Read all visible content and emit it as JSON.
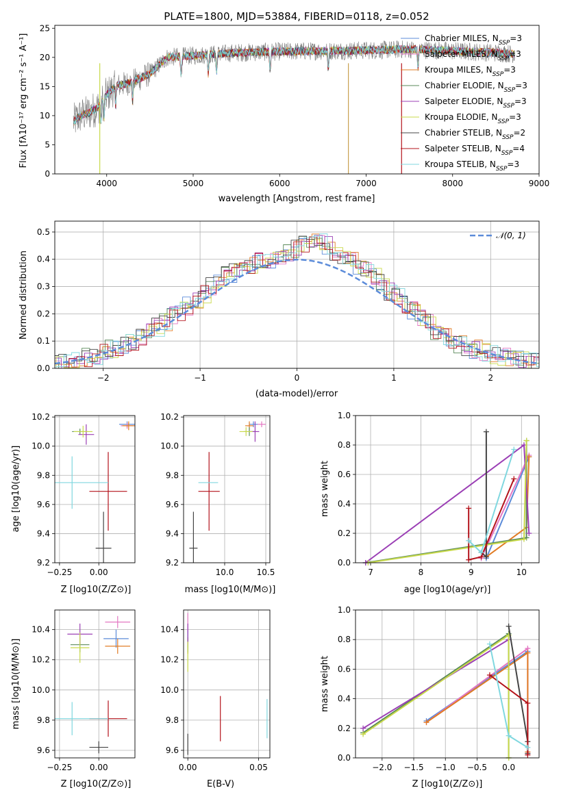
{
  "chart_data": [
    {
      "type": "line",
      "title": "PLATE=1800, MJD=53884, FIBERID=0118, z=0.052",
      "xlabel": "wavelength [Angstrom, rest frame]",
      "ylabel": "Flux [fλ10⁻¹⁷ erg cm⁻² s⁻¹ A⁻¹]",
      "xlim": [
        3400,
        9000
      ],
      "ylim": [
        0,
        25.5
      ],
      "xticks": [
        "4000",
        "5000",
        "6000",
        "7000",
        "8000",
        "9000"
      ],
      "yticks": [
        "0",
        "5",
        "10",
        "15",
        "20",
        "25"
      ],
      "grid": false,
      "legend": "upper right",
      "continuum": {
        "x": [
          3620,
          3700,
          3800,
          3900,
          4000,
          4100,
          4300,
          4500,
          4700,
          5000,
          5500,
          6000,
          6500,
          7000,
          7500,
          8000,
          8500,
          8700
        ],
        "y": [
          9.0,
          10.0,
          10.5,
          11.5,
          13.5,
          15.0,
          15.8,
          17.2,
          20.0,
          20.3,
          20.8,
          21.0,
          21.1,
          21.2,
          21.4,
          21.1,
          20.8,
          20.6
        ]
      },
      "series": [
        {
          "name": "Chabrier MILES, N_SSP=3",
          "color": "#5b8bd9"
        },
        {
          "name": "Salpeter MILES, N_SSP=3",
          "color": "#e377c2"
        },
        {
          "name": "Kroupa MILES, N_SSP=3",
          "color": "#e07b24"
        },
        {
          "name": "Chabrier ELODIE, N_SSP=3",
          "color": "#5a8a5a"
        },
        {
          "name": "Salpeter ELODIE, N_SSP=3",
          "color": "#9b3fb5"
        },
        {
          "name": "Kroupa ELODIE, N_SSP=3",
          "color": "#c8d94a"
        },
        {
          "name": "Chabrier STELIB, N_SSP=2",
          "color": "#444444"
        },
        {
          "name": "Salpeter STELIB, N_SSP=4",
          "color": "#b3121a"
        },
        {
          "name": "Kroupa STELIB, N_SSP=3",
          "color": "#7fd7df"
        }
      ],
      "legend_entries": [
        {
          "pre": "Chabrier MILES, N",
          "post": "=3"
        },
        {
          "pre": "Salpeter MILES, N",
          "post": "=3"
        },
        {
          "pre": "Kroupa MILES, N",
          "post": "=3"
        },
        {
          "pre": "Chabrier ELODIE, N",
          "post": "=3"
        },
        {
          "pre": "Salpeter ELODIE, N",
          "post": "=3"
        },
        {
          "pre": "Kroupa ELODIE, N",
          "post": "=3"
        },
        {
          "pre": "Chabrier STELIB, N",
          "post": "=2"
        },
        {
          "pre": "Salpeter STELIB, N",
          "post": "=4"
        },
        {
          "pre": "Kroupa STELIB, N",
          "post": "=3"
        }
      ],
      "legend_sub": "SSP"
    },
    {
      "type": "histogram",
      "xlabel": "(data-model)/error",
      "ylabel": "Normed distribution",
      "xlim": [
        -2.5,
        2.5
      ],
      "ylim": [
        0,
        0.54
      ],
      "xticks": [
        "−2",
        "−1",
        "0",
        "1",
        "2"
      ],
      "yticks": [
        "0.0",
        "0.1",
        "0.2",
        "0.3",
        "0.4",
        "0.5"
      ],
      "grid": true,
      "legend": "upper right",
      "reference_label": "𝒩(0, 1)",
      "reference": {
        "type": "normal",
        "mean": 0,
        "sigma": 1,
        "color": "#5b8bd9"
      },
      "bin_width": 0.1,
      "bins_start": -2.5,
      "base_values": [
        0.02,
        0.025,
        0.03,
        0.035,
        0.04,
        0.048,
        0.06,
        0.07,
        0.08,
        0.09,
        0.1,
        0.12,
        0.135,
        0.15,
        0.17,
        0.19,
        0.21,
        0.23,
        0.25,
        0.27,
        0.3,
        0.32,
        0.34,
        0.35,
        0.37,
        0.38,
        0.39,
        0.395,
        0.4,
        0.41,
        0.42,
        0.44,
        0.45,
        0.46,
        0.46,
        0.45,
        0.43,
        0.41,
        0.4,
        0.38,
        0.36,
        0.34,
        0.31,
        0.28,
        0.26,
        0.23,
        0.21,
        0.19,
        0.17,
        0.14,
        0.12,
        0.1,
        0.09,
        0.08,
        0.07,
        0.06,
        0.05,
        0.045,
        0.04,
        0.035,
        0.03,
        0.025,
        0.02
      ]
    },
    {
      "type": "errorbar",
      "xlabel": "Z [log10(Z/Z⊙)]",
      "ylabel": "age [log10(age/yr)]",
      "xlim": [
        -0.28,
        0.23
      ],
      "ylim": [
        9.2,
        10.21
      ],
      "xticks": [
        {
          "v": -0.25,
          "t": "−0.25"
        },
        {
          "v": 0.0,
          "t": "0.00"
        }
      ],
      "yticks": [
        "9.2",
        "9.4",
        "9.6",
        "9.8",
        "10.0",
        "10.2"
      ],
      "grid": true,
      "points": [
        {
          "x": 0.18,
          "y": 10.15,
          "xerr": 0.05,
          "yerr": 0.02,
          "color": "#5b8bd9"
        },
        {
          "x": 0.18,
          "y": 10.14,
          "xerr": 0.04,
          "yerr": 0.02,
          "color": "#e377c2"
        },
        {
          "x": 0.19,
          "y": 10.14,
          "xerr": 0.04,
          "yerr": 0.03,
          "color": "#e07b24"
        },
        {
          "x": -0.12,
          "y": 10.1,
          "xerr": 0.05,
          "yerr": 0.02,
          "color": "#5a8a5a"
        },
        {
          "x": -0.08,
          "y": 10.08,
          "xerr": 0.05,
          "yerr": 0.07,
          "color": "#9b3fb5"
        },
        {
          "x": -0.1,
          "y": 10.1,
          "xerr": 0.06,
          "yerr": 0.04,
          "color": "#c8d94a"
        },
        {
          "x": 0.03,
          "y": 9.3,
          "xerr": 0.05,
          "yerr": 0.25,
          "color": "#444444"
        },
        {
          "x": 0.06,
          "y": 9.69,
          "xerr": 0.12,
          "yerr": 0.27,
          "color": "#b3121a"
        },
        {
          "x": -0.17,
          "y": 9.75,
          "xerr": 0.23,
          "yerr": 0.18,
          "color": "#7fd7df"
        }
      ]
    },
    {
      "type": "errorbar",
      "xlabel": "mass [log10(M/M⊙)]",
      "ylabel": "",
      "xlim": [
        9.5,
        10.55
      ],
      "ylim": [
        9.2,
        10.21
      ],
      "xticks": [
        {
          "v": 10.0,
          "t": "10.0"
        },
        {
          "v": 10.5,
          "t": "10.5"
        }
      ],
      "yticks": [
        "9.2",
        "9.4",
        "9.6",
        "9.8",
        "10.0",
        "10.2"
      ],
      "grid": true,
      "points": [
        {
          "x": 10.35,
          "y": 10.15,
          "xerr": 0.05,
          "yerr": 0.02,
          "color": "#5b8bd9"
        },
        {
          "x": 10.45,
          "y": 10.15,
          "xerr": 0.05,
          "yerr": 0.02,
          "color": "#e377c2"
        },
        {
          "x": 10.3,
          "y": 10.14,
          "xerr": 0.05,
          "yerr": 0.03,
          "color": "#e07b24"
        },
        {
          "x": 10.3,
          "y": 10.1,
          "xerr": 0.07,
          "yerr": 0.03,
          "color": "#5a8a5a"
        },
        {
          "x": 10.37,
          "y": 10.1,
          "xerr": 0.05,
          "yerr": 0.07,
          "color": "#9b3fb5"
        },
        {
          "x": 10.26,
          "y": 10.1,
          "xerr": 0.08,
          "yerr": 0.03,
          "color": "#c8d94a"
        },
        {
          "x": 9.62,
          "y": 9.3,
          "xerr": 0.05,
          "yerr": 0.25,
          "color": "#444444"
        },
        {
          "x": 9.81,
          "y": 9.69,
          "xerr": 0.13,
          "yerr": 0.27,
          "color": "#b3121a"
        },
        {
          "x": 9.8,
          "y": 9.75,
          "xerr": 0.12,
          "yerr": 0.0,
          "color": "#7fd7df"
        }
      ]
    },
    {
      "type": "line",
      "xlabel": "age [log10(age/yr)]",
      "ylabel": "mass weight",
      "xlim": [
        6.7,
        10.35
      ],
      "ylim": [
        0,
        1.0
      ],
      "xticks": [
        {
          "v": 7,
          "t": "7"
        },
        {
          "v": 8,
          "t": "8"
        },
        {
          "v": 9,
          "t": "9"
        },
        {
          "v": 10,
          "t": "10"
        }
      ],
      "yticks": [
        "0.0",
        "0.2",
        "0.4",
        "0.6",
        "0.8",
        "1.0"
      ],
      "grid": true,
      "series": [
        {
          "color": "#5b8bd9",
          "x": [
            9.3,
            10.15
          ],
          "y": [
            0.03,
            0.72
          ]
        },
        {
          "color": "#e377c2",
          "x": [
            9.2,
            10.15
          ],
          "y": [
            0.03,
            0.73
          ]
        },
        {
          "color": "#e07b24",
          "x": [
            9.3,
            10.1,
            10.15
          ],
          "y": [
            0.04,
            0.24,
            0.72
          ]
        },
        {
          "color": "#5a8a5a",
          "x": [
            6.9,
            10.1,
            10.1
          ],
          "y": [
            0.0,
            0.17,
            0.83
          ]
        },
        {
          "color": "#9b3fb5",
          "x": [
            6.9,
            10.05,
            10.15
          ],
          "y": [
            0.0,
            0.8,
            0.2
          ]
        },
        {
          "color": "#c8d94a",
          "x": [
            6.95,
            10.05,
            10.1
          ],
          "y": [
            0.0,
            0.16,
            0.83
          ]
        },
        {
          "color": "#444444",
          "x": [
            9.3,
            9.3,
            9.2
          ],
          "y": [
            0.89,
            0.04,
            0.07
          ]
        },
        {
          "color": "#b3121a",
          "x": [
            8.95,
            8.95,
            9.2,
            9.85
          ],
          "y": [
            0.37,
            0.02,
            0.04,
            0.57
          ]
        },
        {
          "color": "#7fd7df",
          "x": [
            8.95,
            9.2,
            9.85
          ],
          "y": [
            0.15,
            0.07,
            0.77
          ]
        }
      ]
    },
    {
      "type": "errorbar",
      "xlabel": "Z [log10(Z/Z⊙)]",
      "ylabel": "mass [log10(M/M⊙)]",
      "xlim": [
        -0.28,
        0.23
      ],
      "ylim": [
        9.55,
        10.53
      ],
      "xticks": [
        {
          "v": -0.25,
          "t": "−0.25"
        },
        {
          "v": 0.0,
          "t": "0.00"
        }
      ],
      "yticks": [
        "9.6",
        "9.8",
        "10.0",
        "10.2",
        "10.4"
      ],
      "grid": true,
      "points": [
        {
          "x": 0.11,
          "y": 10.34,
          "xerr": 0.08,
          "yerr": 0.06,
          "color": "#5b8bd9"
        },
        {
          "x": 0.12,
          "y": 10.45,
          "xerr": 0.08,
          "yerr": 0.04,
          "color": "#e377c2"
        },
        {
          "x": 0.12,
          "y": 10.29,
          "xerr": 0.08,
          "yerr": 0.05,
          "color": "#e07b24"
        },
        {
          "x": -0.12,
          "y": 10.3,
          "xerr": 0.06,
          "yerr": 0.05,
          "color": "#5a8a5a"
        },
        {
          "x": -0.12,
          "y": 10.37,
          "xerr": 0.08,
          "yerr": 0.07,
          "color": "#9b3fb5"
        },
        {
          "x": -0.12,
          "y": 10.28,
          "xerr": 0.06,
          "yerr": 0.1,
          "color": "#c8d94a"
        },
        {
          "x": 0.0,
          "y": 9.62,
          "xerr": 0.06,
          "yerr": 0.04,
          "color": "#444444"
        },
        {
          "x": 0.06,
          "y": 9.81,
          "xerr": 0.12,
          "yerr": 0.12,
          "color": "#b3121a"
        },
        {
          "x": -0.17,
          "y": 9.81,
          "xerr": 0.23,
          "yerr": 0.11,
          "color": "#7fd7df"
        }
      ]
    },
    {
      "type": "errorbar",
      "xlabel": "E(B-V)",
      "ylabel": "",
      "xlim": [
        -0.003,
        0.058
      ],
      "ylim": [
        9.55,
        10.53
      ],
      "xticks": [
        {
          "v": 0.0,
          "t": "0.00"
        },
        {
          "v": 0.05,
          "t": "0.05"
        }
      ],
      "yticks": [
        "9.6",
        "9.8",
        "10.0",
        "10.2",
        "10.4"
      ],
      "grid": true,
      "points": [
        {
          "x": 0.0,
          "y": 10.34,
          "xerr": 0,
          "yerr": 0.06,
          "color": "#5b8bd9"
        },
        {
          "x": 0.0,
          "y": 10.45,
          "xerr": 0,
          "yerr": 0.06,
          "color": "#e377c2"
        },
        {
          "x": 0.0,
          "y": 10.29,
          "xerr": 0,
          "yerr": 0.05,
          "color": "#e07b24"
        },
        {
          "x": 0.0,
          "y": 10.3,
          "xerr": 0,
          "yerr": 0.05,
          "color": "#5a8a5a"
        },
        {
          "x": 0.0,
          "y": 10.37,
          "xerr": 0,
          "yerr": 0.07,
          "color": "#9b3fb5"
        },
        {
          "x": 0.0,
          "y": 10.22,
          "xerr": 0,
          "yerr": 0.1,
          "color": "#c8d94a"
        },
        {
          "x": 0.0,
          "y": 9.64,
          "xerr": 0,
          "yerr": 0.07,
          "color": "#444444"
        },
        {
          "x": 0.023,
          "y": 9.81,
          "xerr": 0,
          "yerr": 0.15,
          "color": "#b3121a"
        },
        {
          "x": 0.056,
          "y": 9.81,
          "xerr": 0,
          "yerr": 0.13,
          "color": "#7fd7df"
        }
      ]
    },
    {
      "type": "line",
      "xlabel": "Z [log10(Z/Z⊙)]",
      "ylabel": "mass weight",
      "xlim": [
        -2.42,
        0.48
      ],
      "ylim": [
        0,
        1.0
      ],
      "xticks": [
        {
          "v": -2.0,
          "t": "−2.0"
        },
        {
          "v": -1.5,
          "t": "−1.5"
        },
        {
          "v": -1.0,
          "t": "−1.0"
        },
        {
          "v": -0.5,
          "t": "−0.5"
        },
        {
          "v": 0.0,
          "t": "0.0"
        }
      ],
      "yticks": [
        "0.0",
        "0.2",
        "0.4",
        "0.6",
        "0.8",
        "1.0"
      ],
      "grid": true,
      "series": [
        {
          "color": "#5b8bd9",
          "x": [
            -1.3,
            0.3
          ],
          "y": [
            0.25,
            0.72
          ]
        },
        {
          "color": "#e377c2",
          "x": [
            -1.3,
            0.3,
            0.3
          ],
          "y": [
            0.24,
            0.74,
            0.03
          ]
        },
        {
          "color": "#e07b24",
          "x": [
            -1.3,
            0.3,
            0.3
          ],
          "y": [
            0.24,
            0.71,
            0.04
          ]
        },
        {
          "color": "#5a8a5a",
          "x": [
            -2.3,
            0.0,
            0.0
          ],
          "y": [
            0.17,
            0.84,
            0.0
          ]
        },
        {
          "color": "#9b3fb5",
          "x": [
            -2.3,
            0.0
          ],
          "y": [
            0.2,
            0.8
          ]
        },
        {
          "color": "#c8d94a",
          "x": [
            -2.3,
            0.0,
            0.0
          ],
          "y": [
            0.16,
            0.83,
            0.0
          ]
        },
        {
          "color": "#444444",
          "x": [
            0.0,
            0.3,
            0.3
          ],
          "y": [
            0.89,
            0.11,
            0.03
          ]
        },
        {
          "color": "#b3121a",
          "x": [
            -0.3,
            0.3,
            0.3
          ],
          "y": [
            0.56,
            0.37,
            0.02
          ]
        },
        {
          "color": "#7fd7df",
          "x": [
            -0.3,
            0.0,
            0.3
          ],
          "y": [
            0.77,
            0.15,
            0.07
          ]
        }
      ]
    }
  ]
}
